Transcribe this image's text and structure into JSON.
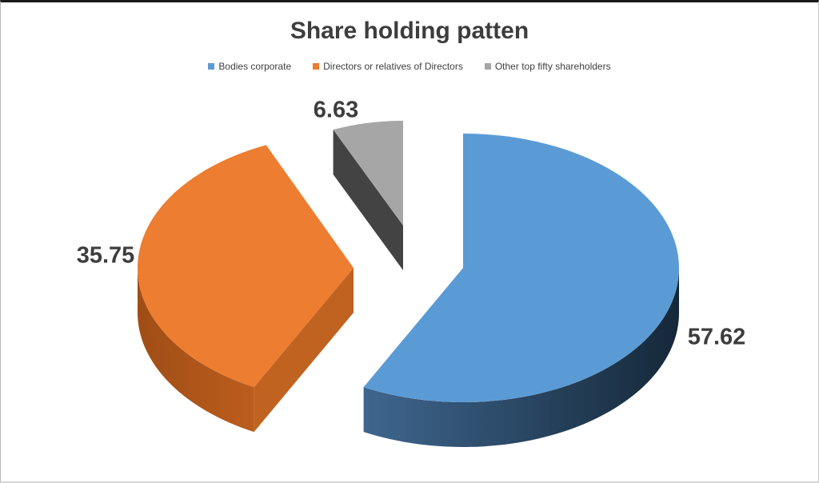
{
  "chart_data": {
    "type": "pie",
    "style": "3d-exploded",
    "title": "Share holding patten",
    "legend_position": "top",
    "start_angle_deg": 0,
    "direction": "clockwise",
    "slices": [
      {
        "label": "Bodies corporate",
        "value": 57.62,
        "color": "#5B9BD5",
        "rim_from": "#3F668F",
        "rim_to": "#152839"
      },
      {
        "label": "Directors or relatives of Directors",
        "value": 35.75,
        "color": "#ED7D31",
        "rim_from": "#9F4D15",
        "rim_to": "#BC5D1E",
        "cut_color": "#C06321"
      },
      {
        "label": "Other top fifty shareholders",
        "value": 6.63,
        "color": "#A6A6A6",
        "cut_color": "#434343"
      }
    ]
  }
}
